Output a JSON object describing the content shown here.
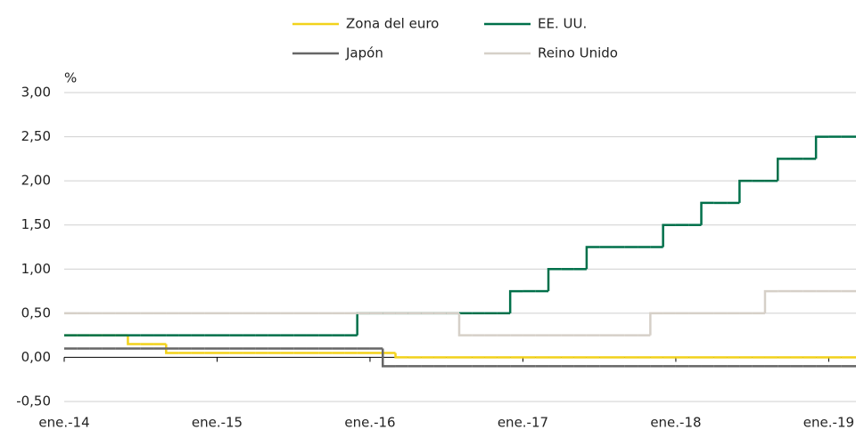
{
  "chart_data": {
    "type": "step",
    "y_label": "%",
    "x": [
      "2014-01",
      "2014-02",
      "2014-03",
      "2014-04",
      "2014-05",
      "2014-06",
      "2014-07",
      "2014-08",
      "2014-09",
      "2014-10",
      "2014-11",
      "2014-12",
      "2015-01",
      "2015-02",
      "2015-03",
      "2015-04",
      "2015-05",
      "2015-06",
      "2015-07",
      "2015-08",
      "2015-09",
      "2015-10",
      "2015-11",
      "2015-12",
      "2016-01",
      "2016-02",
      "2016-03",
      "2016-04",
      "2016-05",
      "2016-06",
      "2016-07",
      "2016-08",
      "2016-09",
      "2016-10",
      "2016-11",
      "2016-12",
      "2017-01",
      "2017-02",
      "2017-03",
      "2017-04",
      "2017-05",
      "2017-06",
      "2017-07",
      "2017-08",
      "2017-09",
      "2017-10",
      "2017-11",
      "2017-12",
      "2018-01",
      "2018-02",
      "2018-03",
      "2018-04",
      "2018-05",
      "2018-06",
      "2018-07",
      "2018-08",
      "2018-09",
      "2018-10",
      "2018-11",
      "2018-12",
      "2019-01",
      "2019-02",
      "2019-03"
    ],
    "series": [
      {
        "name": "Zona del euro",
        "color": "#f2d21b",
        "values": [
          0.25,
          0.25,
          0.25,
          0.25,
          0.25,
          0.15,
          0.15,
          0.15,
          0.05,
          0.05,
          0.05,
          0.05,
          0.05,
          0.05,
          0.05,
          0.05,
          0.05,
          0.05,
          0.05,
          0.05,
          0.05,
          0.05,
          0.05,
          0.05,
          0.05,
          0.05,
          0,
          0,
          0,
          0,
          0,
          0,
          0,
          0,
          0,
          0,
          0,
          0,
          0,
          0,
          0,
          0,
          0,
          0,
          0,
          0,
          0,
          0,
          0,
          0,
          0,
          0,
          0,
          0,
          0,
          0,
          0,
          0,
          0,
          0,
          0,
          0,
          0
        ]
      },
      {
        "name": "EE. UU.",
        "color": "#00704a",
        "values": [
          0.25,
          0.25,
          0.25,
          0.25,
          0.25,
          0.25,
          0.25,
          0.25,
          0.25,
          0.25,
          0.25,
          0.25,
          0.25,
          0.25,
          0.25,
          0.25,
          0.25,
          0.25,
          0.25,
          0.25,
          0.25,
          0.25,
          0.25,
          0.5,
          0.5,
          0.5,
          0.5,
          0.5,
          0.5,
          0.5,
          0.5,
          0.5,
          0.5,
          0.5,
          0.5,
          0.75,
          0.75,
          0.75,
          1,
          1,
          1,
          1.25,
          1.25,
          1.25,
          1.25,
          1.25,
          1.25,
          1.5,
          1.5,
          1.5,
          1.75,
          1.75,
          1.75,
          2,
          2,
          2,
          2.25,
          2.25,
          2.25,
          2.5,
          2.5,
          2.5,
          2.5
        ]
      },
      {
        "name": "Japón",
        "color": "#666666",
        "values": [
          0.1,
          0.1,
          0.1,
          0.1,
          0.1,
          0.1,
          0.1,
          0.1,
          0.1,
          0.1,
          0.1,
          0.1,
          0.1,
          0.1,
          0.1,
          0.1,
          0.1,
          0.1,
          0.1,
          0.1,
          0.1,
          0.1,
          0.1,
          0.1,
          0.1,
          -0.1,
          -0.1,
          -0.1,
          -0.1,
          -0.1,
          -0.1,
          -0.1,
          -0.1,
          -0.1,
          -0.1,
          -0.1,
          -0.1,
          -0.1,
          -0.1,
          -0.1,
          -0.1,
          -0.1,
          -0.1,
          -0.1,
          -0.1,
          -0.1,
          -0.1,
          -0.1,
          -0.1,
          -0.1,
          -0.1,
          -0.1,
          -0.1,
          -0.1,
          -0.1,
          -0.1,
          -0.1,
          -0.1,
          -0.1,
          -0.1,
          -0.1,
          -0.1,
          -0.1
        ]
      },
      {
        "name": "Reino Unido",
        "color": "#d6d0c8",
        "values": [
          0.5,
          0.5,
          0.5,
          0.5,
          0.5,
          0.5,
          0.5,
          0.5,
          0.5,
          0.5,
          0.5,
          0.5,
          0.5,
          0.5,
          0.5,
          0.5,
          0.5,
          0.5,
          0.5,
          0.5,
          0.5,
          0.5,
          0.5,
          0.5,
          0.5,
          0.5,
          0.5,
          0.5,
          0.5,
          0.5,
          0.5,
          0.25,
          0.25,
          0.25,
          0.25,
          0.25,
          0.25,
          0.25,
          0.25,
          0.25,
          0.25,
          0.25,
          0.25,
          0.25,
          0.25,
          0.25,
          0.5,
          0.5,
          0.5,
          0.5,
          0.5,
          0.5,
          0.5,
          0.5,
          0.5,
          0.75,
          0.75,
          0.75,
          0.75,
          0.75,
          0.75,
          0.75,
          0.75
        ]
      }
    ],
    "xlim": [
      "2014-01",
      "2019-03"
    ],
    "xticks": [
      {
        "value": "2014-01",
        "label": "ene.-14"
      },
      {
        "value": "2015-01",
        "label": "ene.-15"
      },
      {
        "value": "2016-01",
        "label": "ene.-16"
      },
      {
        "value": "2017-01",
        "label": "ene.-17"
      },
      {
        "value": "2018-01",
        "label": "ene.-18"
      },
      {
        "value": "2019-01",
        "label": "ene.-19"
      }
    ],
    "ylim": [
      -0.5,
      3
    ],
    "yticks": [
      {
        "value": -0.5,
        "label": "-0,50"
      },
      {
        "value": 0,
        "label": "0,00"
      },
      {
        "value": 0.5,
        "label": "0,50"
      },
      {
        "value": 1,
        "label": "1,00"
      },
      {
        "value": 1.5,
        "label": "1,50"
      },
      {
        "value": 2,
        "label": "2,00"
      },
      {
        "value": 2.5,
        "label": "2,50"
      },
      {
        "value": 3,
        "label": "3,00"
      }
    ],
    "grid": true,
    "legend": "top"
  }
}
